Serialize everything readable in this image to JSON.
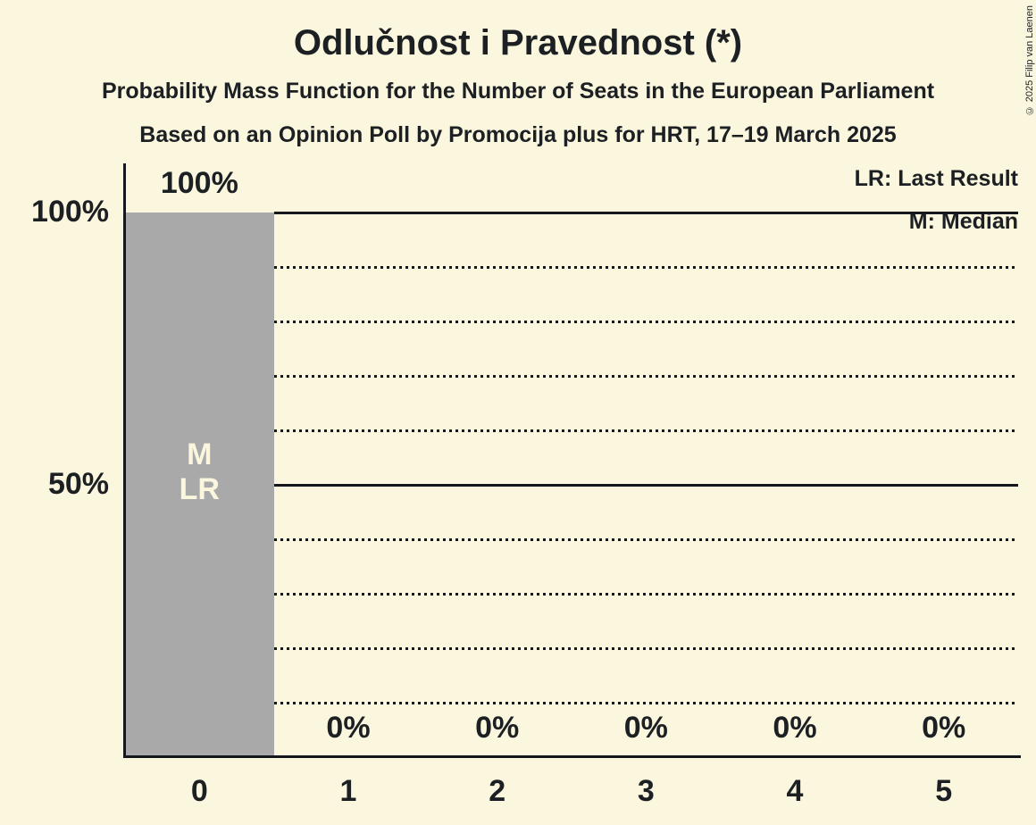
{
  "title": "Odlučnost i Pravednost (*)",
  "subtitle": "Probability Mass Function for the Number of Seats in the European Parliament",
  "poll_details": "Based on an Opinion Poll by Promocija plus for HRT, 17–19 March 2025",
  "legend": {
    "last_result": "LR: Last Result",
    "median": "M: Median"
  },
  "copyright": "© 2025 Filip van Laenen",
  "colors": {
    "background": "#FBF6DE",
    "bar": "#A9A9A9",
    "text": "#1C2023",
    "bar_label": "#FBF6DE",
    "line": "#14171B"
  },
  "chart_data": {
    "type": "bar",
    "categories": [
      "0",
      "1",
      "2",
      "3",
      "4",
      "5"
    ],
    "values": [
      100,
      0,
      0,
      0,
      0,
      0
    ],
    "value_labels": [
      "100%",
      "0%",
      "0%",
      "0%",
      "0%",
      "0%"
    ],
    "ylim": [
      0,
      100
    ],
    "y_ticks": [
      {
        "value": 100,
        "label": "100%"
      },
      {
        "value": 50,
        "label": "50%"
      }
    ],
    "solid_gridlines": [
      100,
      50
    ],
    "dotted_gridlines": [
      90,
      80,
      70,
      60,
      40,
      30,
      20,
      10
    ],
    "annotations": [
      {
        "category_index": 0,
        "labels": [
          "M",
          "LR"
        ]
      }
    ],
    "legend_position": "top-right",
    "grid": "horizontal"
  }
}
